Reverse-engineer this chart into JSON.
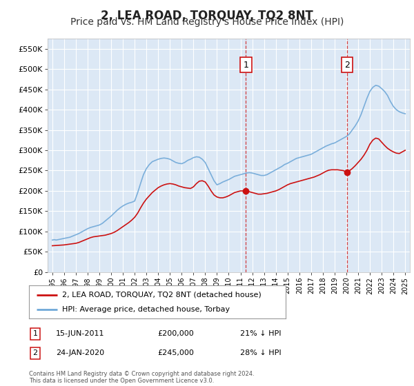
{
  "title": "2, LEA ROAD, TORQUAY, TQ2 8NT",
  "subtitle": "Price paid vs. HM Land Registry's House Price Index (HPI)",
  "title_fontsize": 12,
  "subtitle_fontsize": 10,
  "background_color": "#ffffff",
  "plot_bg_color": "#dce8f5",
  "grid_color": "#ffffff",
  "ylabel_ticks": [
    "£0",
    "£50K",
    "£100K",
    "£150K",
    "£200K",
    "£250K",
    "£300K",
    "£350K",
    "£400K",
    "£450K",
    "£500K",
    "£550K"
  ],
  "ylabel_values": [
    0,
    50000,
    100000,
    150000,
    200000,
    250000,
    300000,
    350000,
    400000,
    450000,
    500000,
    550000
  ],
  "ylim": [
    0,
    575000
  ],
  "hpi_color": "#6fa8d8",
  "price_color": "#cc1111",
  "marker1_x": 2011.46,
  "marker2_x": 2020.06,
  "marker1_price": 200000,
  "marker2_price": 245000,
  "legend_line1": "2, LEA ROAD, TORQUAY, TQ2 8NT (detached house)",
  "legend_line2": "HPI: Average price, detached house, Torbay",
  "footer": "Contains HM Land Registry data © Crown copyright and database right 2024.\nThis data is licensed under the Open Government Licence v3.0.",
  "x_years": [
    1995,
    1996,
    1997,
    1998,
    1999,
    2000,
    2001,
    2002,
    2003,
    2004,
    2005,
    2006,
    2007,
    2008,
    2009,
    2010,
    2011,
    2012,
    2013,
    2014,
    2015,
    2016,
    2017,
    2018,
    2019,
    2020,
    2021,
    2022,
    2023,
    2024,
    2025
  ],
  "hpi_x": [
    1995.0,
    1995.08,
    1995.17,
    1995.25,
    1995.33,
    1995.42,
    1995.5,
    1995.58,
    1995.67,
    1995.75,
    1995.83,
    1995.92,
    1996.0,
    1996.08,
    1996.17,
    1996.25,
    1996.33,
    1996.42,
    1996.5,
    1996.58,
    1996.67,
    1996.75,
    1996.83,
    1996.92,
    1997.0,
    1997.25,
    1997.5,
    1997.75,
    1998.0,
    1998.25,
    1998.5,
    1998.75,
    1999.0,
    1999.25,
    1999.5,
    1999.75,
    2000.0,
    2000.25,
    2000.5,
    2000.75,
    2001.0,
    2001.25,
    2001.5,
    2001.75,
    2002.0,
    2002.25,
    2002.5,
    2002.75,
    2003.0,
    2003.25,
    2003.5,
    2003.75,
    2004.0,
    2004.25,
    2004.5,
    2004.75,
    2005.0,
    2005.25,
    2005.5,
    2005.75,
    2006.0,
    2006.25,
    2006.5,
    2006.75,
    2007.0,
    2007.25,
    2007.5,
    2007.75,
    2008.0,
    2008.25,
    2008.5,
    2008.75,
    2009.0,
    2009.25,
    2009.5,
    2009.75,
    2010.0,
    2010.25,
    2010.5,
    2010.75,
    2011.0,
    2011.25,
    2011.5,
    2011.75,
    2012.0,
    2012.25,
    2012.5,
    2012.75,
    2013.0,
    2013.25,
    2013.5,
    2013.75,
    2014.0,
    2014.25,
    2014.5,
    2014.75,
    2015.0,
    2015.25,
    2015.5,
    2015.75,
    2016.0,
    2016.25,
    2016.5,
    2016.75,
    2017.0,
    2017.25,
    2017.5,
    2017.75,
    2018.0,
    2018.25,
    2018.5,
    2018.75,
    2019.0,
    2019.25,
    2019.5,
    2019.75,
    2020.0,
    2020.25,
    2020.5,
    2020.75,
    2021.0,
    2021.25,
    2021.5,
    2021.75,
    2022.0,
    2022.25,
    2022.5,
    2022.75,
    2023.0,
    2023.25,
    2023.5,
    2023.75,
    2024.0,
    2024.25,
    2024.5,
    2024.75,
    2025.0
  ],
  "hpi_y": [
    79000,
    79500,
    80000,
    79500,
    79000,
    79500,
    80000,
    80500,
    81000,
    81500,
    82000,
    82500,
    83000,
    83500,
    84000,
    84500,
    85000,
    85500,
    86000,
    87000,
    88000,
    89000,
    90000,
    91000,
    92000,
    95000,
    99000,
    103000,
    107000,
    110000,
    112000,
    114000,
    116000,
    120000,
    126000,
    132000,
    138000,
    145000,
    152000,
    158000,
    163000,
    167000,
    170000,
    172000,
    175000,
    195000,
    218000,
    240000,
    255000,
    265000,
    272000,
    275000,
    278000,
    280000,
    281000,
    280000,
    278000,
    274000,
    270000,
    268000,
    267000,
    270000,
    275000,
    278000,
    282000,
    284000,
    283000,
    278000,
    270000,
    255000,
    240000,
    225000,
    215000,
    218000,
    222000,
    225000,
    228000,
    232000,
    236000,
    238000,
    240000,
    242000,
    244000,
    245000,
    244000,
    242000,
    240000,
    238000,
    238000,
    240000,
    244000,
    248000,
    252000,
    256000,
    260000,
    265000,
    268000,
    272000,
    276000,
    280000,
    282000,
    284000,
    286000,
    288000,
    290000,
    294000,
    298000,
    302000,
    306000,
    310000,
    313000,
    316000,
    318000,
    322000,
    326000,
    330000,
    334000,
    340000,
    350000,
    360000,
    372000,
    388000,
    408000,
    428000,
    445000,
    455000,
    460000,
    458000,
    452000,
    445000,
    435000,
    420000,
    408000,
    400000,
    395000,
    392000,
    390000
  ],
  "price_x": [
    1995.0,
    1995.25,
    1995.5,
    1995.75,
    1996.0,
    1996.25,
    1996.5,
    1996.75,
    1997.0,
    1997.25,
    1997.5,
    1997.75,
    1998.0,
    1998.25,
    1998.5,
    1998.75,
    1999.0,
    1999.25,
    1999.5,
    1999.75,
    2000.0,
    2000.25,
    2000.5,
    2000.75,
    2001.0,
    2001.25,
    2001.5,
    2001.75,
    2002.0,
    2002.25,
    2002.5,
    2002.75,
    2003.0,
    2003.25,
    2003.5,
    2003.75,
    2004.0,
    2004.25,
    2004.5,
    2004.75,
    2005.0,
    2005.25,
    2005.5,
    2005.75,
    2006.0,
    2006.25,
    2006.5,
    2006.75,
    2007.0,
    2007.25,
    2007.5,
    2007.75,
    2008.0,
    2008.25,
    2008.5,
    2008.75,
    2009.0,
    2009.25,
    2009.5,
    2009.75,
    2010.0,
    2010.25,
    2010.5,
    2010.75,
    2011.0,
    2011.25,
    2011.46,
    2011.75,
    2012.0,
    2012.25,
    2012.5,
    2012.75,
    2013.0,
    2013.25,
    2013.5,
    2013.75,
    2014.0,
    2014.25,
    2014.5,
    2014.75,
    2015.0,
    2015.25,
    2015.5,
    2015.75,
    2016.0,
    2016.25,
    2016.5,
    2016.75,
    2017.0,
    2017.25,
    2017.5,
    2017.75,
    2018.0,
    2018.25,
    2018.5,
    2018.75,
    2019.0,
    2019.25,
    2019.5,
    2019.75,
    2020.06,
    2020.5,
    2020.75,
    2021.0,
    2021.25,
    2021.5,
    2021.75,
    2022.0,
    2022.25,
    2022.5,
    2022.75,
    2023.0,
    2023.25,
    2023.5,
    2023.75,
    2024.0,
    2024.25,
    2024.5,
    2025.0
  ],
  "price_y": [
    65000,
    65500,
    66000,
    66500,
    67000,
    68000,
    69000,
    70000,
    71000,
    73000,
    76000,
    79000,
    82000,
    85000,
    87000,
    88000,
    89000,
    90000,
    91000,
    93000,
    95000,
    98000,
    102000,
    107000,
    112000,
    117000,
    122000,
    128000,
    135000,
    145000,
    158000,
    170000,
    180000,
    188000,
    196000,
    202000,
    208000,
    212000,
    215000,
    217000,
    218000,
    217000,
    215000,
    212000,
    210000,
    208000,
    207000,
    206000,
    210000,
    218000,
    224000,
    225000,
    222000,
    212000,
    200000,
    190000,
    185000,
    183000,
    183000,
    185000,
    188000,
    192000,
    196000,
    198000,
    200000,
    200000,
    200000,
    198000,
    196000,
    194000,
    192000,
    192000,
    193000,
    194000,
    196000,
    198000,
    200000,
    203000,
    207000,
    211000,
    215000,
    218000,
    220000,
    222000,
    224000,
    226000,
    228000,
    230000,
    232000,
    234000,
    237000,
    240000,
    244000,
    248000,
    251000,
    252000,
    252000,
    252000,
    251000,
    250000,
    245000,
    255000,
    262000,
    270000,
    278000,
    288000,
    300000,
    315000,
    325000,
    330000,
    328000,
    320000,
    312000,
    305000,
    300000,
    296000,
    293000,
    292000,
    300000
  ]
}
